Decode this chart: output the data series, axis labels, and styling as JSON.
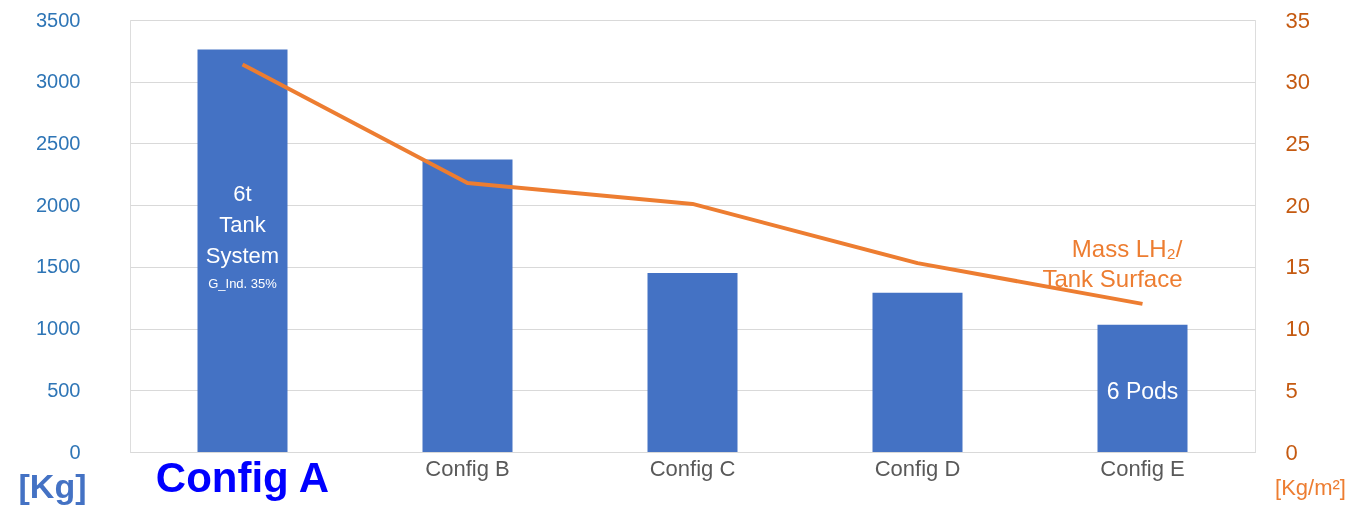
{
  "chart_data": {
    "type": "bar",
    "ylabel": "[Kg]",
    "y2label": "[Kg/m²]",
    "categories": [
      "Config A",
      "Config B",
      "Config C",
      "Config D",
      "Config E"
    ],
    "series": [
      {
        "color": "#4472c4",
        "values": [
          3260,
          2370,
          1450,
          1290,
          1030
        ]
      },
      {
        "type": "line",
        "name": "Mass LH₂/\nTank Surface",
        "axis": "y2",
        "color": "#ed7d31",
        "values": [
          31.4,
          21.8,
          20.1,
          15.3,
          12.0
        ]
      }
    ],
    "ylim": [
      0,
      3500
    ],
    "yticks": [
      0,
      500,
      1000,
      1500,
      2000,
      2500,
      3000,
      3500
    ],
    "y2lim": [
      0,
      35
    ],
    "y2ticks": [
      0,
      5,
      10,
      15,
      20,
      25,
      30,
      35
    ],
    "grid": "y",
    "legend": false,
    "marker": "none",
    "annotations": [
      "6t\nTank\nSystem",
      "G_Ind. 35%",
      "6 Pods"
    ]
  }
}
